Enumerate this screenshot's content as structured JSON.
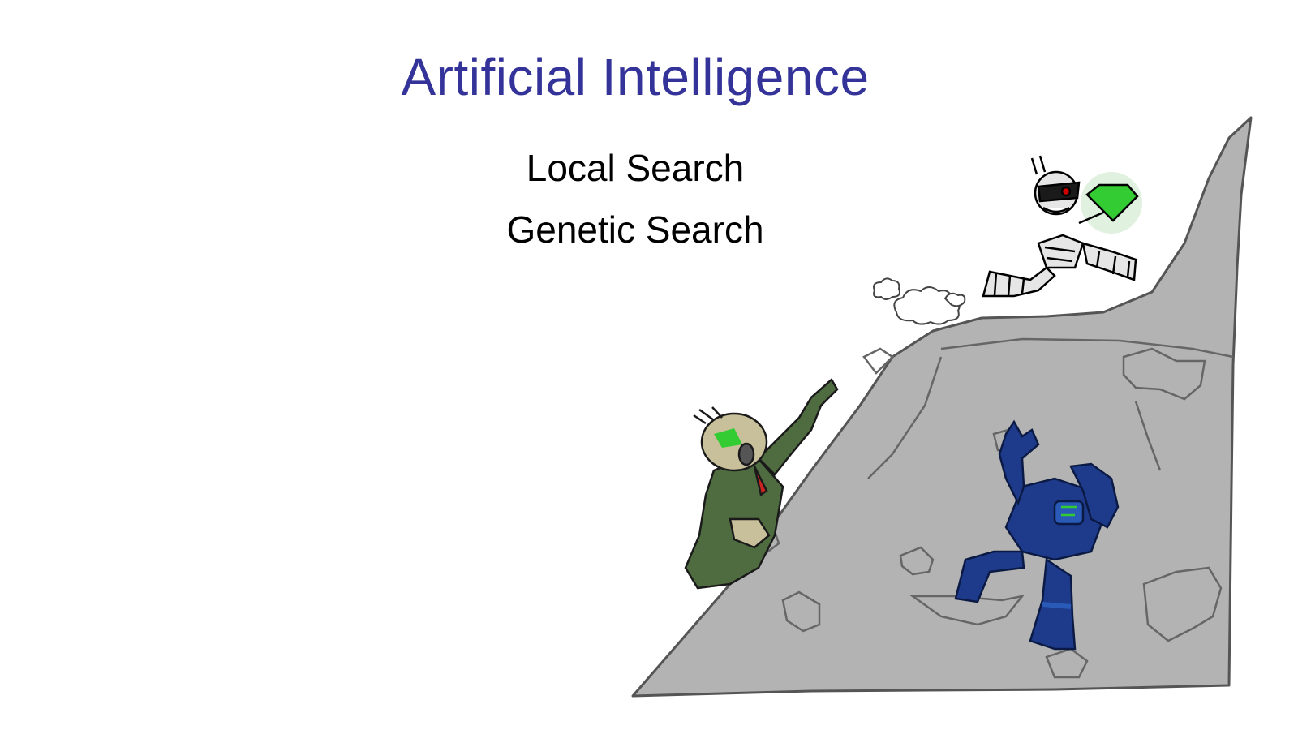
{
  "slide": {
    "title": "Artificial Intelligence",
    "subtitles": [
      "Local Search",
      "Genetic Search"
    ]
  },
  "illustration": {
    "icon": "hill-climbing-robots-cartoon",
    "colors": {
      "title": "#343399",
      "hill": "#b3b3b3",
      "green_robot": "#4f6b40",
      "blue_robot": "#1e3a8a",
      "gem": "#33cc33"
    }
  }
}
